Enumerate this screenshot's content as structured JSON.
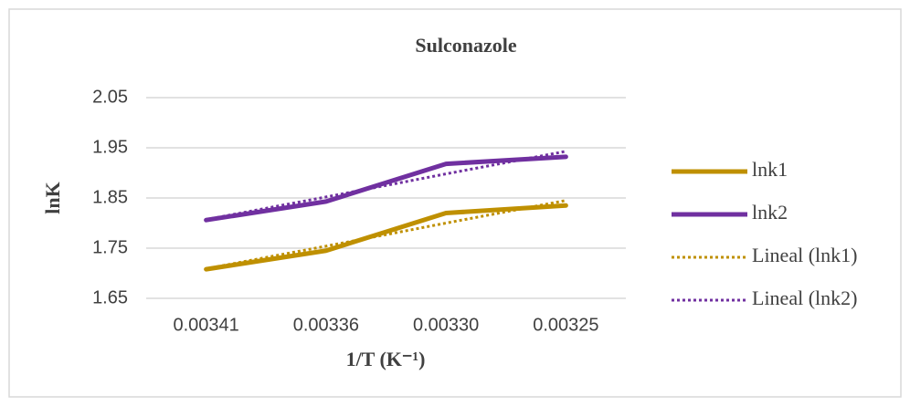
{
  "chart_data": {
    "type": "line",
    "title": "Sulconazole",
    "x_label": "1/T (K⁻¹)",
    "y_label": "lnK",
    "categories": [
      "0.00341",
      "0.00336",
      "0.00330",
      "0.00325"
    ],
    "series": [
      {
        "name": "lnk1",
        "color": "#bf9000",
        "style": "solid",
        "values": [
          1.708,
          1.745,
          1.82,
          1.835
        ]
      },
      {
        "name": "lnk2",
        "color": "#7030a0",
        "style": "solid",
        "values": [
          1.806,
          1.843,
          1.918,
          1.932
        ]
      },
      {
        "name": "Lineal (lnk1)",
        "color": "#bf9000",
        "style": "dotted",
        "values": [
          1.709,
          1.754,
          1.8,
          1.845
        ]
      },
      {
        "name": "Lineal (lnk2)",
        "color": "#7030a0",
        "style": "dotted",
        "values": [
          1.807,
          1.852,
          1.898,
          1.943
        ]
      }
    ],
    "ylim": [
      1.65,
      2.05
    ],
    "yticks": [
      1.65,
      1.75,
      1.85,
      1.95,
      2.05
    ],
    "grid": true,
    "legend": "right"
  }
}
